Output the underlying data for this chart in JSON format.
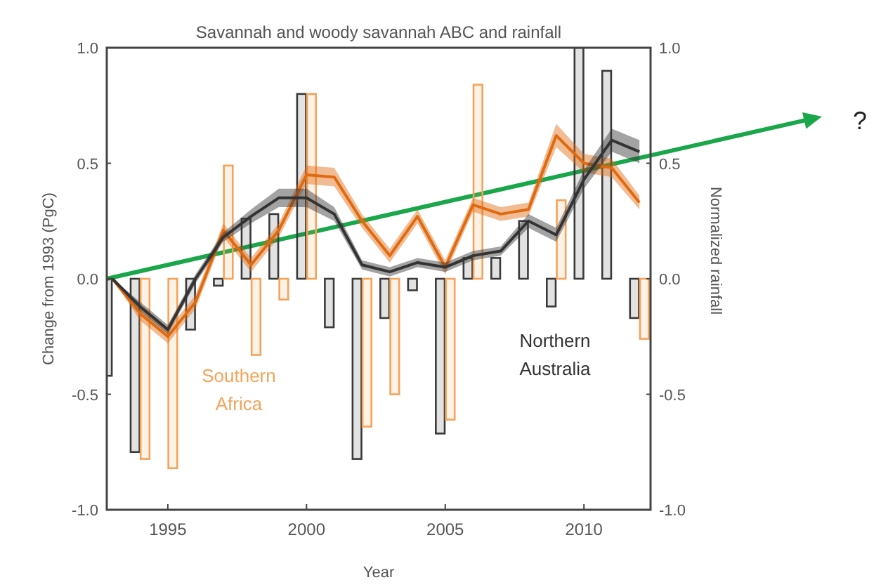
{
  "chart_data": {
    "type": "line",
    "title": "Savannah and woody savannah ABC and rainfall",
    "xlabel": "Year",
    "ylabel": "Change from 1993 (PgC)",
    "y2label": "Normalized rainfall",
    "annotations": [
      "Southern Africa",
      "Northern Australia",
      "?"
    ],
    "xlim": [
      1992.8,
      2012.4
    ],
    "xticks": [
      1995,
      2000,
      2005,
      2010
    ],
    "ylim": [
      -1,
      1
    ],
    "yticks": [
      {
        "value": -1,
        "label": "-1.0"
      },
      {
        "value": -0.5,
        "label": "-0.5"
      },
      {
        "value": 0,
        "label": "0.0"
      },
      {
        "value": 0.5,
        "label": "0.5"
      },
      {
        "value": 1,
        "label": "1.0"
      }
    ],
    "y2lim": [
      -1,
      1
    ],
    "y2ticks": [
      {
        "value": -1,
        "label": "-1.0"
      },
      {
        "value": -0.5,
        "label": "-0.5"
      },
      {
        "value": 0,
        "label": "0.0"
      },
      {
        "value": 0.5,
        "label": "0.5"
      },
      {
        "value": 1,
        "label": "1.0"
      }
    ],
    "grid": false,
    "series": [
      {
        "type": "bar",
        "axis": "y2",
        "color": "#3a3a3a",
        "x": [
          1993,
          1994,
          1996,
          1997,
          1998,
          1999,
          2000,
          2001,
          2002,
          2003,
          2004,
          2005,
          2006,
          2007,
          2008,
          2009,
          2010,
          2011,
          2012
        ],
        "values": [
          -0.42,
          -0.75,
          -0.22,
          -0.03,
          0.26,
          0.28,
          0.8,
          -0.21,
          -0.78,
          -0.17,
          -0.05,
          -0.67,
          0.09,
          0.09,
          0.25,
          -0.12,
          1.0,
          0.9,
          -0.17
        ]
      },
      {
        "type": "bar",
        "axis": "y2",
        "color": "#f5a35a",
        "x": [
          1994,
          1995,
          1997,
          1998,
          1999,
          2000,
          2002,
          2003,
          2005,
          2006,
          2009,
          2012
        ],
        "values": [
          -0.78,
          -0.82,
          0.49,
          -0.33,
          -0.09,
          0.8,
          -0.64,
          -0.5,
          -0.61,
          0.84,
          0.34,
          -0.26
        ]
      },
      {
        "color": "#e06a10",
        "x": [
          1993,
          1994,
          1995,
          1996,
          1997,
          1998,
          1999,
          2000,
          2001,
          2002,
          2003,
          2004,
          2005,
          2006,
          2007,
          2008,
          2009,
          2010,
          2011,
          2012
        ],
        "values": [
          0,
          -0.15,
          -0.25,
          -0.1,
          0.21,
          0.06,
          0.21,
          0.45,
          0.44,
          0.25,
          0.1,
          0.27,
          0.05,
          0.32,
          0.28,
          0.3,
          0.62,
          0.5,
          0.48,
          0.33
        ],
        "lower": [
          0,
          -0.18,
          -0.28,
          -0.13,
          0.18,
          0.03,
          0.18,
          0.41,
          0.4,
          0.22,
          0.07,
          0.24,
          0.02,
          0.29,
          0.25,
          0.27,
          0.57,
          0.46,
          0.44,
          0.3
        ],
        "upper": [
          0,
          -0.12,
          -0.22,
          -0.07,
          0.24,
          0.09,
          0.24,
          0.49,
          0.48,
          0.28,
          0.13,
          0.3,
          0.08,
          0.35,
          0.31,
          0.33,
          0.67,
          0.54,
          0.52,
          0.36
        ]
      },
      {
        "color": "#333333",
        "x": [
          1993,
          1994,
          1995,
          1996,
          1997,
          1998,
          1999,
          2000,
          2001,
          2002,
          2003,
          2004,
          2005,
          2006,
          2007,
          2008,
          2009,
          2010,
          2011,
          2012
        ],
        "values": [
          0,
          -0.12,
          -0.22,
          0,
          0.18,
          0.27,
          0.35,
          0.35,
          0.28,
          0.06,
          0.03,
          0.07,
          0.05,
          0.1,
          0.12,
          0.25,
          0.19,
          0.43,
          0.6,
          0.55
        ],
        "lower": [
          0,
          -0.14,
          -0.24,
          -0.02,
          0.16,
          0.24,
          0.31,
          0.31,
          0.25,
          0.04,
          0.01,
          0.05,
          0.03,
          0.08,
          0.1,
          0.22,
          0.16,
          0.39,
          0.55,
          0.5
        ],
        "upper": [
          0,
          -0.1,
          -0.2,
          0.02,
          0.2,
          0.3,
          0.39,
          0.39,
          0.31,
          0.08,
          0.05,
          0.09,
          0.07,
          0.12,
          0.14,
          0.28,
          0.22,
          0.47,
          0.65,
          0.6
        ]
      }
    ]
  }
}
